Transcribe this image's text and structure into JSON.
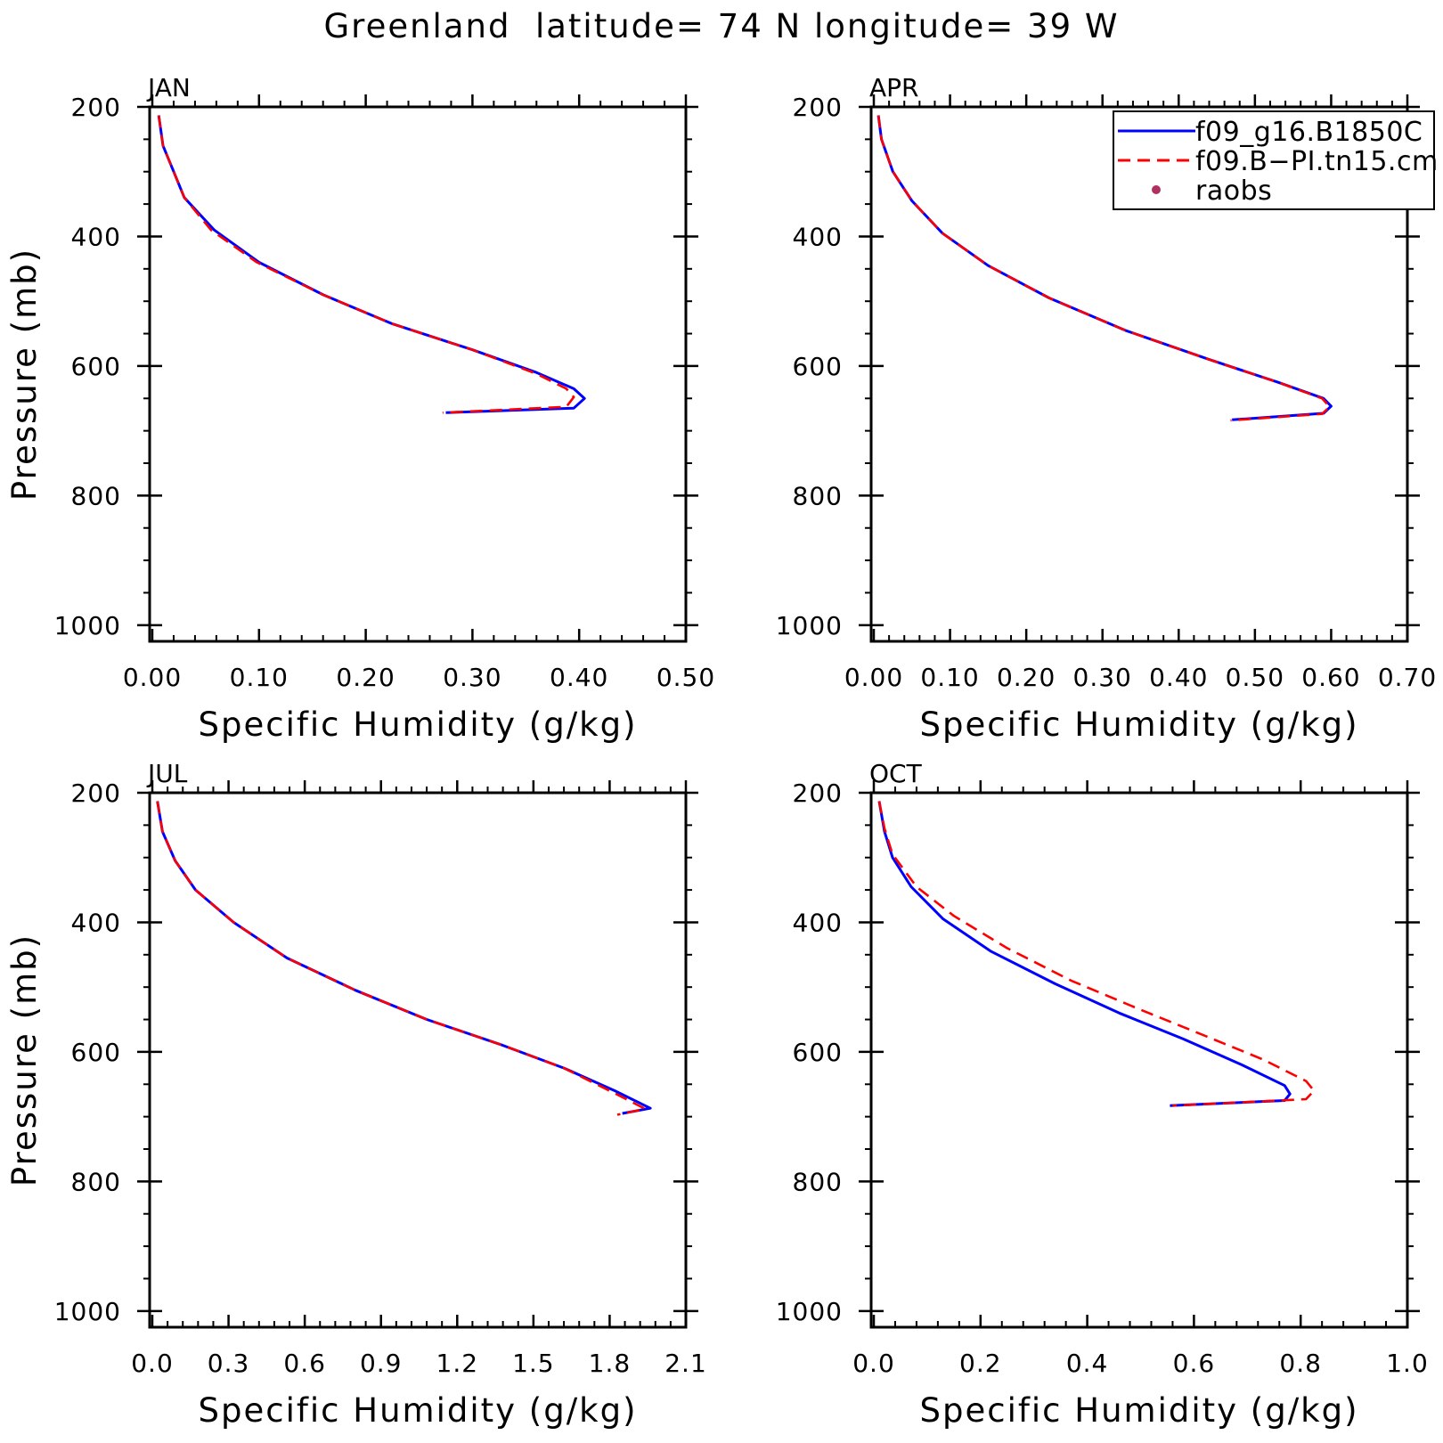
{
  "title": "Greenland  latitude= 74 N longitude= 39 W",
  "colors": {
    "model1": "#0000ff",
    "model2": "#ff0000",
    "raobs": "#b03060",
    "axes": "#000000"
  },
  "legend": {
    "placement": "top-right",
    "items": [
      {
        "label": "f09_g16.B1850C",
        "color": "#0000ff",
        "style": "solid"
      },
      {
        "label": "f09.B−PI.tn15.cm",
        "color": "#ff0000",
        "style": "dashed"
      },
      {
        "label": "raobs",
        "color": "#b03060",
        "style": "dot"
      }
    ]
  },
  "chart_data": [
    {
      "type": "line",
      "title": "JAN",
      "xlabel": "Specific Humidity (g/kg)",
      "ylabel": "Pressure (mb)",
      "xlim": [
        0,
        0.5
      ],
      "ylim": [
        1000,
        200
      ],
      "xticks": [
        "0.00",
        "0.10",
        "0.20",
        "0.30",
        "0.40",
        "0.50"
      ],
      "yticks": [
        "200",
        "400",
        "600",
        "800",
        "1000"
      ],
      "show_legend": false,
      "series": [
        {
          "name": "f09_g16.B1850C",
          "x": [
            0.006,
            0.01,
            0.02,
            0.03,
            0.058,
            0.1,
            0.16,
            0.225,
            0.3,
            0.36,
            0.395,
            0.405,
            0.395,
            0.275
          ],
          "y": [
            213,
            260,
            300,
            340,
            390,
            440,
            490,
            535,
            575,
            610,
            635,
            650,
            665,
            672
          ]
        },
        {
          "name": "f09.B−PI.tn15.cm",
          "x": [
            0.006,
            0.01,
            0.02,
            0.03,
            0.055,
            0.098,
            0.16,
            0.225,
            0.3,
            0.36,
            0.388,
            0.395,
            0.388,
            0.272
          ],
          "y": [
            213,
            260,
            300,
            340,
            390,
            440,
            490,
            535,
            575,
            612,
            635,
            648,
            663,
            672
          ]
        }
      ]
    },
    {
      "type": "line",
      "title": "APR",
      "xlabel": "Specific Humidity (g/kg)",
      "ylabel": "",
      "xlim": [
        0,
        0.7
      ],
      "ylim": [
        1000,
        200
      ],
      "xticks": [
        "0.00",
        "0.10",
        "0.20",
        "0.30",
        "0.40",
        "0.50",
        "0.60",
        "0.70"
      ],
      "yticks": [
        "200",
        "400",
        "600",
        "800",
        "1000"
      ],
      "show_legend": true,
      "series": [
        {
          "name": "f09_g16.B1850C",
          "x": [
            0.006,
            0.01,
            0.025,
            0.05,
            0.09,
            0.15,
            0.23,
            0.33,
            0.44,
            0.53,
            0.59,
            0.6,
            0.59,
            0.47
          ],
          "y": [
            213,
            250,
            300,
            345,
            395,
            445,
            495,
            545,
            590,
            625,
            650,
            662,
            673,
            683
          ]
        },
        {
          "name": "f09.B−PI.tn15.cm",
          "x": [
            0.006,
            0.01,
            0.025,
            0.05,
            0.09,
            0.15,
            0.23,
            0.33,
            0.44,
            0.53,
            0.588,
            0.598,
            0.588,
            0.468
          ],
          "y": [
            213,
            250,
            300,
            345,
            395,
            445,
            495,
            545,
            590,
            625,
            650,
            663,
            674,
            684
          ]
        }
      ]
    },
    {
      "type": "line",
      "title": "JUL",
      "xlabel": "Specific Humidity (g/kg)",
      "ylabel": "Pressure (mb)",
      "xlim": [
        0,
        2.1
      ],
      "ylim": [
        1000,
        200
      ],
      "xticks": [
        "0.0",
        "0.3",
        "0.6",
        "0.9",
        "1.2",
        "1.5",
        "1.8",
        "2.1"
      ],
      "yticks": [
        "200",
        "400",
        "600",
        "800",
        "1000"
      ],
      "show_legend": false,
      "series": [
        {
          "name": "f09_g16.B1850C",
          "x": [
            0.02,
            0.04,
            0.09,
            0.17,
            0.32,
            0.53,
            0.8,
            1.08,
            1.38,
            1.62,
            1.82,
            1.96,
            1.85
          ],
          "y": [
            213,
            260,
            305,
            350,
            400,
            455,
            505,
            550,
            590,
            625,
            660,
            687,
            695
          ]
        },
        {
          "name": "f09.B−PI.tn15.cm",
          "x": [
            0.02,
            0.04,
            0.09,
            0.17,
            0.32,
            0.53,
            0.8,
            1.08,
            1.38,
            1.62,
            1.81,
            1.94,
            1.83
          ],
          "y": [
            213,
            260,
            305,
            350,
            400,
            455,
            505,
            550,
            590,
            625,
            662,
            688,
            697
          ]
        }
      ]
    },
    {
      "type": "line",
      "title": "OCT",
      "xlabel": "Specific Humidity (g/kg)",
      "ylabel": "",
      "xlim": [
        0,
        1.0
      ],
      "ylim": [
        1000,
        200
      ],
      "xticks": [
        "0.0",
        "0.2",
        "0.4",
        "0.6",
        "0.8",
        "1.0"
      ],
      "yticks": [
        "200",
        "400",
        "600",
        "800",
        "1000"
      ],
      "show_legend": false,
      "series": [
        {
          "name": "f09_g16.B1850C",
          "x": [
            0.01,
            0.02,
            0.035,
            0.07,
            0.13,
            0.22,
            0.34,
            0.46,
            0.58,
            0.69,
            0.77,
            0.78,
            0.77,
            0.555
          ],
          "y": [
            213,
            260,
            300,
            345,
            395,
            445,
            495,
            540,
            580,
            620,
            652,
            665,
            675,
            683
          ]
        },
        {
          "name": "f09.B−PI.tn15.cm",
          "x": [
            0.01,
            0.02,
            0.035,
            0.08,
            0.15,
            0.25,
            0.37,
            0.5,
            0.62,
            0.73,
            0.81,
            0.825,
            0.81,
            0.56
          ],
          "y": [
            213,
            255,
            295,
            345,
            390,
            440,
            490,
            535,
            575,
            612,
            645,
            660,
            673,
            683
          ]
        }
      ]
    }
  ]
}
